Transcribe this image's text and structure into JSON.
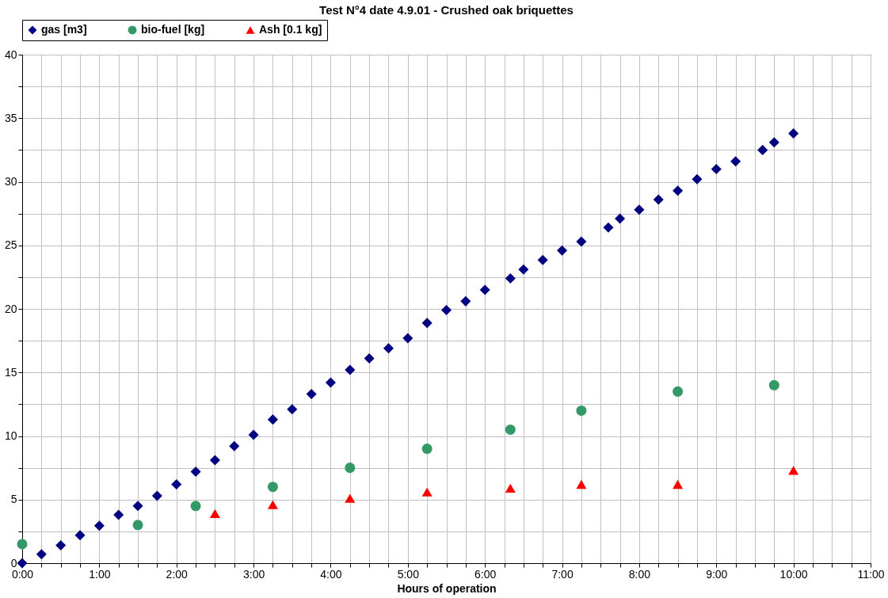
{
  "chart_data": {
    "type": "scatter",
    "title": "Test N°4 date 4.9.01 - Crushed oak briquettes",
    "xlabel": "Hours of operation",
    "xlim": [
      0,
      11
    ],
    "ylim": [
      0,
      40
    ],
    "xticks": [
      {
        "value": 0,
        "label": "0:00"
      },
      {
        "value": 0.25,
        "label": null
      },
      {
        "value": 0.5,
        "label": null
      },
      {
        "value": 0.75,
        "label": null
      },
      {
        "value": 1,
        "label": "1:00"
      },
      {
        "value": 1.25,
        "label": null
      },
      {
        "value": 1.5,
        "label": null
      },
      {
        "value": 1.75,
        "label": null
      },
      {
        "value": 2,
        "label": "2:00"
      },
      {
        "value": 2.25,
        "label": null
      },
      {
        "value": 2.5,
        "label": null
      },
      {
        "value": 2.75,
        "label": null
      },
      {
        "value": 3,
        "label": "3:00"
      },
      {
        "value": 3.25,
        "label": null
      },
      {
        "value": 3.5,
        "label": null
      },
      {
        "value": 3.75,
        "label": null
      },
      {
        "value": 4,
        "label": "4:00"
      },
      {
        "value": 4.25,
        "label": null
      },
      {
        "value": 4.5,
        "label": null
      },
      {
        "value": 4.75,
        "label": null
      },
      {
        "value": 5,
        "label": "5:00"
      },
      {
        "value": 5.25,
        "label": null
      },
      {
        "value": 5.5,
        "label": null
      },
      {
        "value": 5.75,
        "label": null
      },
      {
        "value": 6,
        "label": "6:00"
      },
      {
        "value": 6.25,
        "label": null
      },
      {
        "value": 6.5,
        "label": null
      },
      {
        "value": 6.75,
        "label": null
      },
      {
        "value": 7,
        "label": "7:00"
      },
      {
        "value": 7.25,
        "label": null
      },
      {
        "value": 7.5,
        "label": null
      },
      {
        "value": 7.75,
        "label": null
      },
      {
        "value": 8,
        "label": "8:00"
      },
      {
        "value": 8.25,
        "label": null
      },
      {
        "value": 8.5,
        "label": null
      },
      {
        "value": 8.75,
        "label": null
      },
      {
        "value": 9,
        "label": "9:00"
      },
      {
        "value": 9.25,
        "label": null
      },
      {
        "value": 9.5,
        "label": null
      },
      {
        "value": 9.75,
        "label": null
      },
      {
        "value": 10,
        "label": "10:00"
      },
      {
        "value": 10.25,
        "label": null
      },
      {
        "value": 10.5,
        "label": null
      },
      {
        "value": 10.75,
        "label": null
      },
      {
        "value": 11,
        "label": "11:00"
      }
    ],
    "yticks": [
      0,
      {
        "value": 2.5,
        "label": null
      },
      5,
      {
        "value": 7.5,
        "label": null
      },
      10,
      {
        "value": 12.5,
        "label": null
      },
      15,
      {
        "value": 17.5,
        "label": null
      },
      20,
      {
        "value": 22.5,
        "label": null
      },
      25,
      {
        "value": 27.5,
        "label": null
      },
      30,
      {
        "value": 32.5,
        "label": null
      },
      35,
      {
        "value": 37.5,
        "label": null
      },
      40
    ],
    "grid": true,
    "legend": "top",
    "series": [
      {
        "name": "gas [m3]",
        "color": "#000080",
        "marker": "diamond",
        "x": [
          0,
          0.25,
          0.5,
          0.75,
          1,
          1.25,
          1.5,
          1.75,
          2,
          2.25,
          2.5,
          2.75,
          3,
          3.25,
          3.5,
          3.75,
          4,
          4.25,
          4.5,
          4.75,
          5,
          5.25,
          5.5,
          5.75,
          6,
          6.33,
          6.5,
          6.75,
          7,
          7.25,
          7.6,
          7.75,
          8,
          8.25,
          8.5,
          8.75,
          9,
          9.25,
          9.6,
          9.75,
          10
        ],
        "values": [
          0,
          0.7,
          1.4,
          2.2,
          2.95,
          3.8,
          4.5,
          5.3,
          6.2,
          7.2,
          8.1,
          9.2,
          10.1,
          11.3,
          12.1,
          13.3,
          14.2,
          15.2,
          16.1,
          16.9,
          17.7,
          18.9,
          19.9,
          20.6,
          21.5,
          22.4,
          23.1,
          23.85,
          24.6,
          25.3,
          26.4,
          27.1,
          27.8,
          28.6,
          29.3,
          30.2,
          31.0,
          31.6,
          32.5,
          33.1,
          33.8
        ]
      },
      {
        "name": "bio-fuel [kg]",
        "color": "#339966",
        "marker": "circle",
        "x": [
          0,
          1.5,
          2.25,
          3.25,
          4.25,
          5.25,
          6.33,
          7.25,
          8.5,
          9.75
        ],
        "values": [
          1.5,
          3.0,
          4.5,
          6.0,
          7.5,
          9.0,
          10.5,
          12.0,
          13.5,
          14.0
        ]
      },
      {
        "name": "Ash [0.1 kg]",
        "color": "#ff0000",
        "marker": "triangle",
        "x": [
          2.5,
          3.25,
          4.25,
          5.25,
          6.33,
          7.25,
          8.5,
          10
        ],
        "values": [
          3.9,
          4.6,
          5.1,
          5.6,
          5.9,
          6.2,
          6.2,
          7.3
        ]
      }
    ]
  }
}
